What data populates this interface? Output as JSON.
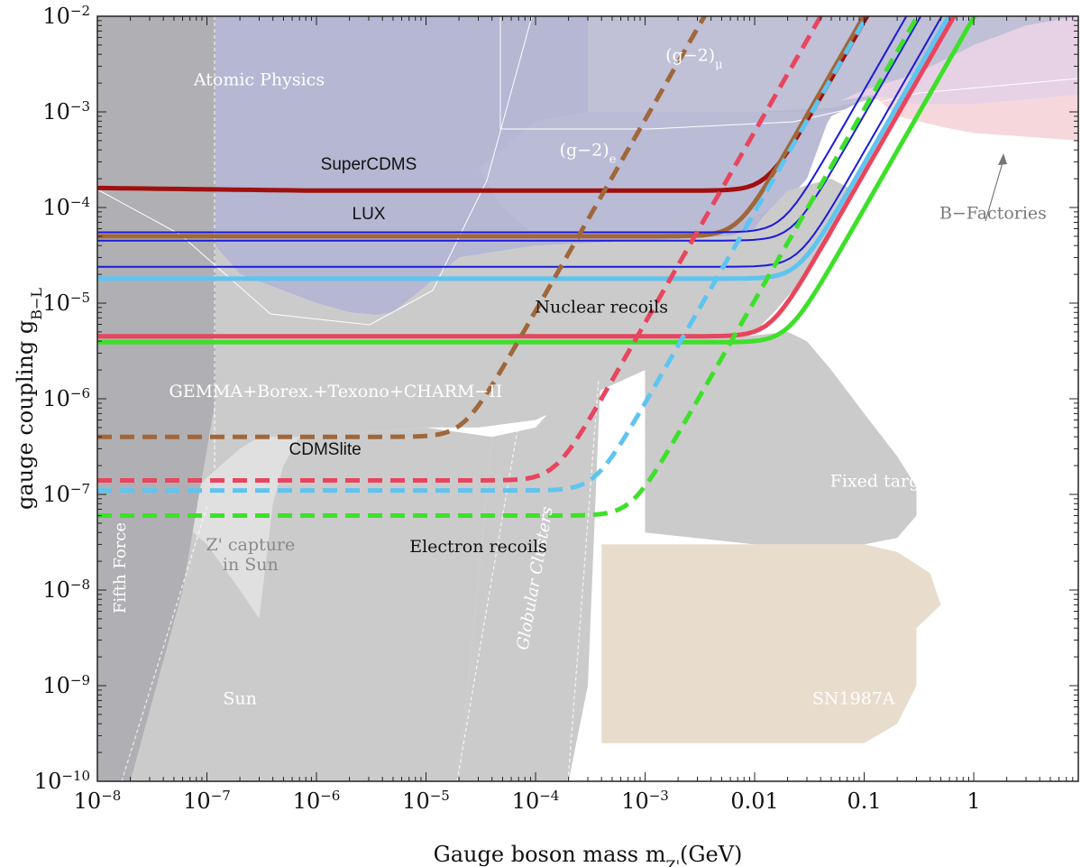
{
  "chart_data": {
    "type": "line",
    "xlabel": "Gauge boson mass m",
    "xlabel_sub": "Z'",
    "xlabel_unit": "(GeV)",
    "ylabel": "gauge coupling g",
    "ylabel_sub": "B−L",
    "x_scale": "log",
    "y_scale": "log",
    "xlim": [
      1e-08,
      9
    ],
    "ylim": [
      1e-10,
      0.01
    ],
    "x_ticks": [
      {
        "v": 1e-08,
        "base": "10",
        "exp": "−8"
      },
      {
        "v": 1e-07,
        "base": "10",
        "exp": "−7"
      },
      {
        "v": 1e-06,
        "base": "10",
        "exp": "−6"
      },
      {
        "v": 1e-05,
        "base": "10",
        "exp": "−5"
      },
      {
        "v": 0.0001,
        "base": "10",
        "exp": "−4"
      },
      {
        "v": 0.001,
        "base": "10",
        "exp": "−3"
      },
      {
        "v": 0.01,
        "base": "0.01",
        "exp": ""
      },
      {
        "v": 0.1,
        "base": "0.1",
        "exp": ""
      },
      {
        "v": 1,
        "base": "1",
        "exp": ""
      }
    ],
    "y_ticks": [
      {
        "v": 0.01,
        "base": "10",
        "exp": "−2"
      },
      {
        "v": 0.001,
        "base": "10",
        "exp": "−3"
      },
      {
        "v": 0.0001,
        "base": "10",
        "exp": "−4"
      },
      {
        "v": 1e-05,
        "base": "10",
        "exp": "−5"
      },
      {
        "v": 1e-06,
        "base": "10",
        "exp": "−6"
      },
      {
        "v": 1e-07,
        "base": "10",
        "exp": "−7"
      },
      {
        "v": 1e-08,
        "base": "10",
        "exp": "−8"
      },
      {
        "v": 1e-09,
        "base": "10",
        "exp": "−9"
      },
      {
        "v": 1e-10,
        "base": "10",
        "exp": "−10"
      }
    ],
    "colors": {
      "dark_red": "#a00f0f",
      "brown": "#a0673a",
      "blue": "#1a1adc",
      "light_blue": "#5ec4f0",
      "pink_red": "#e8455e",
      "green": "#3ee02a",
      "excluded_gray": "#cbcbcb",
      "dark_gray": "#a4a4b0",
      "lavender": "#b5b7d3",
      "tan": "#e8dccd",
      "pink": "#f6d8dc"
    },
    "regions": [
      {
        "name": "Atomic Physics",
        "label": "Atomic Physics",
        "color": "#b5b7d3",
        "points": [
          [
            1e-08,
            0.01
          ],
          [
            9,
            0.01
          ],
          [
            9,
            0.002
          ],
          [
            0.2,
            0.002
          ],
          [
            0.05,
            0.0009
          ],
          [
            0.02,
            0.00015
          ],
          [
            0.012,
            8e-05
          ],
          [
            0.01,
            6e-05
          ],
          [
            0.006,
            5e-05
          ],
          [
            0.001,
            4.5e-05
          ],
          [
            0.0001,
            4e-05
          ],
          [
            2e-05,
            3e-05
          ],
          [
            1e-05,
            1.5e-05
          ],
          [
            5e-06,
            8e-06
          ],
          [
            3.5e-06,
            7.5e-06
          ],
          [
            2e-06,
            8e-06
          ],
          [
            1e-06,
            1e-05
          ],
          [
            2e-07,
            2e-05
          ],
          [
            1e-07,
            5e-05
          ],
          [
            1e-08,
            0.00016
          ]
        ]
      },
      {
        "name": "(g-2)_mu",
        "label": "(g−2)",
        "label_sub": "μ",
        "color": "#c0c0d6",
        "points": [
          [
            0.0003,
            0.01
          ],
          [
            9,
            0.01
          ],
          [
            9,
            0.002
          ],
          [
            0.5,
            0.002
          ],
          [
            0.2,
            0.0015
          ],
          [
            0.1,
            0.0013
          ],
          [
            0.05,
            0.0011
          ],
          [
            0.01,
            0.001
          ],
          [
            0.001,
            0.001
          ],
          [
            0.0003,
            0.001
          ]
        ]
      },
      {
        "name": "(g-2)_e",
        "label": "(g−2)",
        "label_sub": "e",
        "color": "#babcd6",
        "points": [
          [
            0.0003,
            0.001
          ],
          [
            0.01,
            0.001
          ],
          [
            0.05,
            0.001
          ],
          [
            0.03,
            0.0002
          ],
          [
            0.02,
            0.00012
          ],
          [
            0.01,
            8e-05
          ],
          [
            0.005,
            6e-05
          ],
          [
            0.001,
            5e-05
          ],
          [
            0.0002,
            4.8e-05
          ],
          [
            0.0001,
            5e-05
          ],
          [
            5e-05,
            0.0001
          ],
          [
            3e-05,
            0.00025
          ],
          [
            0.0001,
            0.0008
          ]
        ]
      },
      {
        "name": "B-Factories",
        "label": "B−Factories",
        "color": "#f6d8dc",
        "points": [
          [
            0.12,
            0.0015
          ],
          [
            0.3,
            0.0012
          ],
          [
            1,
            0.0012
          ],
          [
            9,
            0.0015
          ],
          [
            9,
            0.0005
          ],
          [
            3,
            0.00055
          ],
          [
            1,
            0.0006
          ],
          [
            0.5,
            0.0007
          ],
          [
            0.2,
            0.0009
          ]
        ]
      },
      {
        "name": "B-Factories upper",
        "label": "",
        "color": "#e6d2e4",
        "points": [
          [
            0.06,
            0.0013
          ],
          [
            0.1,
            0.0017
          ],
          [
            0.3,
            0.0025
          ],
          [
            1,
            0.005
          ],
          [
            3,
            0.008
          ],
          [
            9,
            0.01
          ],
          [
            9,
            0.0015
          ],
          [
            1,
            0.0012
          ],
          [
            0.3,
            0.0012
          ],
          [
            0.12,
            0.0015
          ]
        ]
      },
      {
        "name": "Nuclear recoils gray",
        "label": "GEMMA+Borex.+Texono+CHARM−II",
        "color": "#cbcbcb",
        "points": [
          [
            1e-08,
            0.00016
          ],
          [
            1e-07,
            5e-05
          ],
          [
            2e-07,
            2e-05
          ],
          [
            1e-06,
            1e-05
          ],
          [
            2e-06,
            8e-06
          ],
          [
            3.5e-06,
            7.5e-06
          ],
          [
            5e-06,
            8e-06
          ],
          [
            1e-05,
            1.5e-05
          ],
          [
            2e-05,
            3e-05
          ],
          [
            0.0001,
            4e-05
          ],
          [
            0.001,
            4.5e-05
          ],
          [
            0.006,
            5e-05
          ],
          [
            0.01,
            6e-05
          ],
          [
            0.012,
            8e-05
          ],
          [
            0.02,
            0.00015
          ],
          [
            0.05,
            0.0002
          ],
          [
            0.08,
            0.00015
          ],
          [
            0.05,
            5e-05
          ],
          [
            0.03,
            2e-05
          ],
          [
            0.015,
            8e-06
          ],
          [
            0.01,
            5e-06
          ],
          [
            0.004,
            3e-06
          ],
          [
            0.001,
            2e-06
          ],
          [
            0.0001,
            6e-07
          ],
          [
            3e-05,
            5e-07
          ],
          [
            1e-05,
            5e-07
          ],
          [
            1e-06,
            4e-07
          ],
          [
            1e-07,
            4e-07
          ],
          [
            1e-08,
            4e-07
          ]
        ]
      },
      {
        "name": "Fixed target",
        "label": "Fixed target",
        "color": "#cbcbcb",
        "points": [
          [
            0.001,
            3.5e-06
          ],
          [
            0.02,
            5e-06
          ],
          [
            0.03,
            4e-06
          ],
          [
            0.05,
            2e-06
          ],
          [
            0.1,
            7e-07
          ],
          [
            0.2,
            2.5e-07
          ],
          [
            0.3,
            1.2e-07
          ],
          [
            0.3,
            6e-08
          ],
          [
            0.2,
            3.5e-08
          ],
          [
            0.1,
            3e-08
          ],
          [
            0.01,
            3e-08
          ],
          [
            0.001,
            4e-08
          ]
        ]
      },
      {
        "name": "Globular Clusters",
        "label": "Globular Clusters",
        "color": "#cbcbcb",
        "points": [
          [
            2e-05,
            1e-10
          ],
          [
            0.0002,
            1e-10
          ],
          [
            0.0003,
            1e-09
          ],
          [
            0.0004,
            3e-06
          ],
          [
            0.0001,
            5e-07
          ],
          [
            4e-05,
            4e-07
          ]
        ]
      },
      {
        "name": "Sun",
        "label": "Sun",
        "color": "#cbcbcb",
        "points": [
          [
            1e-08,
            1e-10
          ],
          [
            2e-05,
            1e-10
          ],
          [
            4e-05,
            4e-07
          ],
          [
            1e-05,
            5e-07
          ],
          [
            1e-06,
            4e-07
          ],
          [
            1e-07,
            4e-07
          ],
          [
            1e-08,
            4e-07
          ]
        ]
      },
      {
        "name": "Z' capture in Sun",
        "label": "Z' capture",
        "label2": "in Sun",
        "color": "#e0e0e0",
        "points": [
          [
            5e-08,
            6e-08
          ],
          [
            1e-07,
            1.5e-07
          ],
          [
            2e-07,
            3e-07
          ],
          [
            3e-07,
            4e-07
          ],
          [
            7e-07,
            4e-07
          ],
          [
            5e-07,
            2e-07
          ],
          [
            4e-07,
            8e-08
          ],
          [
            3e-07,
            5e-09
          ],
          [
            2e-07,
            1e-08
          ],
          [
            1e-07,
            3e-08
          ]
        ]
      },
      {
        "name": "Fifth Force",
        "label": "Fifth Force",
        "color": "#b0b0b4",
        "points": [
          [
            1e-08,
            1e-10
          ],
          [
            2e-08,
            1e-10
          ],
          [
            6e-08,
            1e-08
          ],
          [
            1.2e-07,
            1e-06
          ],
          [
            1.2e-07,
            0.01
          ],
          [
            1e-08,
            0.01
          ]
        ]
      },
      {
        "name": "SN1987A",
        "label": "SN1987A",
        "color": "#e8dccd",
        "points": [
          [
            0.0004,
            2.5e-10
          ],
          [
            0.1,
            2.5e-10
          ],
          [
            0.2,
            4e-10
          ],
          [
            0.3,
            1e-09
          ],
          [
            0.3,
            4e-09
          ],
          [
            0.5,
            7e-09
          ],
          [
            0.4,
            1.5e-08
          ],
          [
            0.2,
            2.5e-08
          ],
          [
            0.1,
            3e-08
          ],
          [
            0.01,
            3e-08
          ],
          [
            0.001,
            3e-08
          ],
          [
            0.0004,
            3e-08
          ]
        ]
      }
    ],
    "series": [
      {
        "name": "SuperCDMS",
        "color": "#a00f0f",
        "style": "solid",
        "width": 5,
        "start_y": 0.00016,
        "plateau": 0.00015,
        "knee": 0.013
      },
      {
        "name": "LUX",
        "color": "#a0673a",
        "style": "solid",
        "width": 5,
        "start_y": 5e-05,
        "plateau": 5e-05,
        "knee": 0.007
      },
      {
        "name": "blue-1",
        "color": "#1a1adc",
        "style": "solid",
        "width": 2,
        "start_y": 5.5e-05,
        "plateau": 5.5e-05,
        "knee": 0.018
      },
      {
        "name": "blue-2",
        "color": "#1a1adc",
        "style": "solid",
        "width": 2,
        "start_y": 4.5e-05,
        "plateau": 4.5e-05,
        "knee": 0.022
      },
      {
        "name": "blue-3",
        "color": "#1a1adc",
        "style": "solid",
        "width": 2,
        "start_y": 2.4e-05,
        "plateau": 2.4e-05,
        "knee": 0.025
      },
      {
        "name": "light-blue-solid",
        "color": "#5ec4f0",
        "style": "solid",
        "width": 5,
        "start_y": 1.8e-05,
        "plateau": 1.8e-05,
        "knee": 0.025
      },
      {
        "name": "Nuclear recoils",
        "color": "#e8455e",
        "style": "solid",
        "width": 5,
        "start_y": 4.5e-06,
        "plateau": 4.5e-06,
        "knee": 0.014
      },
      {
        "name": "green-solid",
        "color": "#3ee02a",
        "style": "solid",
        "width": 5,
        "start_y": 3.9e-06,
        "plateau": 3.9e-06,
        "knee": 0.02
      },
      {
        "name": "brown-dashed",
        "color": "#a0673a",
        "style": "dashed",
        "width": 5,
        "start_y": 4e-07,
        "plateau": 4e-07,
        "knee": 2.2e-05
      },
      {
        "name": "CDMSlite",
        "color": "#e8455e",
        "style": "dashed",
        "width": 5,
        "start_y": 1.4e-07,
        "plateau": 1.4e-07,
        "knee": 0.00015
      },
      {
        "name": "light-blue-dashed",
        "color": "#5ec4f0",
        "style": "dashed",
        "width": 5,
        "start_y": 1.1e-07,
        "plateau": 1.1e-07,
        "knee": 0.00035
      },
      {
        "name": "Electron recoils",
        "color": "#3ee02a",
        "style": "dashed",
        "width": 5,
        "start_y": 6e-08,
        "plateau": 6e-08,
        "knee": 0.00075
      }
    ],
    "annotations": [
      {
        "name": "label-supercdms",
        "text": "SuperCDMS",
        "x": 3e-06,
        "y": 0.00025,
        "color": "#111111",
        "font": "sans"
      },
      {
        "name": "label-lux",
        "text": "LUX",
        "x": 3e-06,
        "y": 7.5e-05,
        "color": "#111111",
        "font": "sans"
      },
      {
        "name": "label-nuclear-recoils",
        "text": "Nuclear recoils",
        "x": 0.0004,
        "y": 8e-06,
        "color": "#111111",
        "font": "serif"
      },
      {
        "name": "label-cdmslite",
        "text": "CDMSlite",
        "x": 1.2e-06,
        "y": 2.6e-07,
        "color": "#111111",
        "font": "sans"
      },
      {
        "name": "label-electron-recoils",
        "text": "Electron recoils",
        "x": 3e-05,
        "y": 2.5e-08,
        "color": "#111111",
        "font": "serif"
      }
    ]
  }
}
